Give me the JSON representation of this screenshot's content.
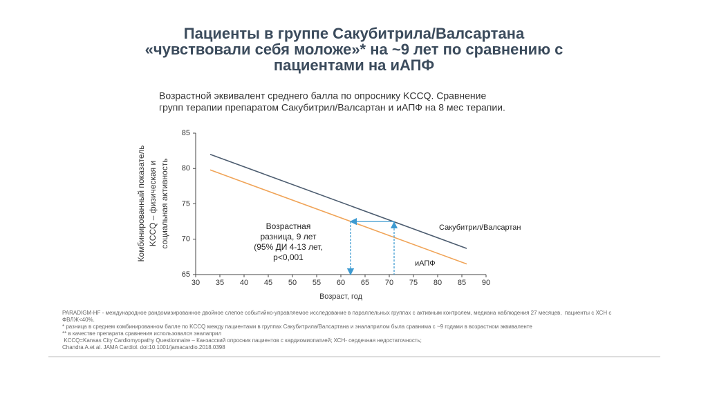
{
  "chart_data": {
    "type": "line",
    "title": [
      "Пациенты в группе Сакубитрила/Валсартана",
      "«чувствовали себя моложе»* на ~9 лет по сравнению с",
      "пациентами на иАПФ"
    ],
    "subtitle": [
      "Возрастной эквивалент среднего балла по опроснику KCCQ. Сравнение",
      "групп терапии препаратом Сакубитрил/Валсартан и иАПФ на 8 мес терапии."
    ],
    "y_label": [
      "Комбинированный показатель",
      "KCCQ – физическая и",
      "социальная активность"
    ],
    "x_label": "Возраст, год",
    "xlim": [
      30,
      90
    ],
    "xticks": [
      30,
      35,
      40,
      45,
      50,
      55,
      60,
      65,
      70,
      75,
      80,
      85,
      90
    ],
    "ylim": [
      65,
      85
    ],
    "yticks": [
      65,
      70,
      75,
      80,
      85
    ],
    "series": [
      {
        "name": "Сакубитрил/Валсартан",
        "color": "#4d5d70",
        "x": [
          33,
          86
        ],
        "values": [
          82,
          68.7
        ]
      },
      {
        "name": "иАПФ",
        "color": "#f0a458",
        "x": [
          33,
          86
        ],
        "values": [
          79.8,
          66.5
        ]
      }
    ],
    "annotation": [
      "Возрастная",
      "разница, 9 лет",
      "(95% ДИ 4-13 лет,",
      "p<0,001"
    ],
    "arrows": [
      {
        "x": 62,
        "y": 72.5
      },
      {
        "x": 71,
        "y": 72.5
      }
    ],
    "arrow_color": "#3d9ad1",
    "footnotes": [
      "PARADIGM-HF - международное рандомизированное двойное слепое событийно-управляемое исследование в параллельных группах с активным контролем, медиана наблюдения 27 месяцев,  пациенты с ХСН с ФВЛЖ<40%.",
      "* разница в среднем комбинированном балле по KCCQ между пациентами в группах Сакубитрила/Валсартана и эналаприлом была сравнима с ~9 годами в возрастном эквиваленте",
      "** в качестве препарата сравнения использовался эналаприл",
      " KCCQ=Kansas City Cardiomyopathy Questionnaire – Канзасский опросник пациентов с кардиомиопатией; ХСН- сердечная недостаточность;",
      "Chandra A.et al. JAMA Cardiol. doi:10.1001/jamacardio.2018.0398"
    ]
  }
}
